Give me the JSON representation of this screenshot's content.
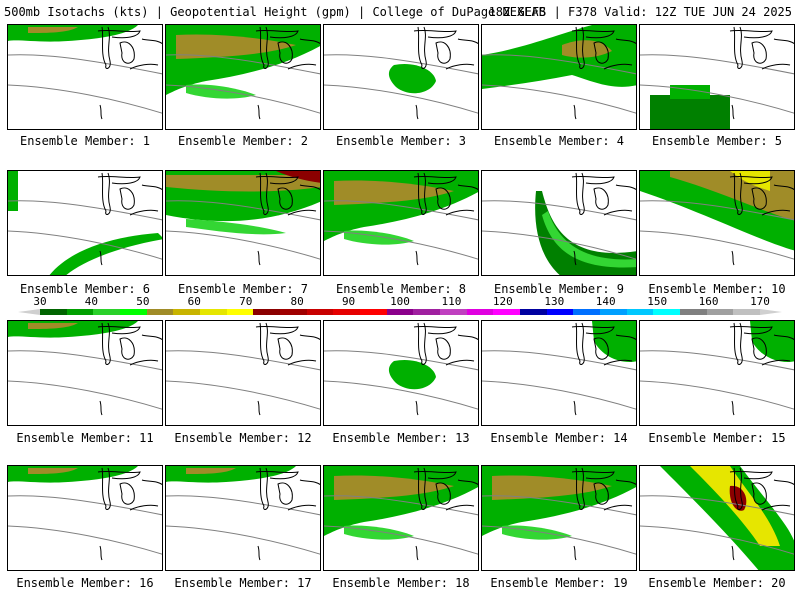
{
  "header": {
    "left": "500mb Isotachs (kts) | Geopotential Height (gpm) | College of DuPage NEXLAB",
    "right": "18Z GEFS | F378 Valid: 12Z TUE JUN 24 2025"
  },
  "panels": [
    {
      "label": "Ensemble Member: 1",
      "wind": "weak-north"
    },
    {
      "label": "Ensemble Member: 2",
      "wind": "broad-band"
    },
    {
      "label": "Ensemble Member: 3",
      "wind": "small-patch"
    },
    {
      "label": "Ensemble Member: 4",
      "wind": "northeast-band"
    },
    {
      "label": "Ensemble Member: 5",
      "wind": "south-block"
    },
    {
      "label": "Ensemble Member: 6",
      "wind": "arc-south"
    },
    {
      "label": "Ensemble Member: 7",
      "wind": "strong-north"
    },
    {
      "label": "Ensemble Member: 8",
      "wind": "broad-band"
    },
    {
      "label": "Ensemble Member: 9",
      "wind": "arc-wide"
    },
    {
      "label": "Ensemble Member: 10",
      "wind": "diagonal-band"
    },
    {
      "label": "Ensemble Member: 11",
      "wind": "weak-north"
    },
    {
      "label": "Ensemble Member: 12",
      "wind": "none"
    },
    {
      "label": "Ensemble Member: 13",
      "wind": "small-patch"
    },
    {
      "label": "Ensemble Member: 14",
      "wind": "east-patch"
    },
    {
      "label": "Ensemble Member: 15",
      "wind": "east-patch"
    },
    {
      "label": "Ensemble Member: 16",
      "wind": "weak-north"
    },
    {
      "label": "Ensemble Member: 17",
      "wind": "weak-north"
    },
    {
      "label": "Ensemble Member: 18",
      "wind": "broad-band"
    },
    {
      "label": "Ensemble Member: 19",
      "wind": "broad-band"
    },
    {
      "label": "Ensemble Member: 20",
      "wind": "jet-core"
    }
  ],
  "colorbar": {
    "ticks": [
      "30",
      "40",
      "50",
      "60",
      "70",
      "80",
      "90",
      "100",
      "110",
      "120",
      "130",
      "140",
      "150",
      "160",
      "170"
    ],
    "colors": [
      "#006400",
      "#00a000",
      "#2ad12a",
      "#00ff00",
      "#a08c28",
      "#c8b400",
      "#e6e600",
      "#ffff00",
      "#8b0000",
      "#a00000",
      "#c80000",
      "#e60000",
      "#ff0000",
      "#8b008b",
      "#a020a0",
      "#c040c0",
      "#e000e0",
      "#ff00ff",
      "#0000a0",
      "#0000ff",
      "#0070ff",
      "#00a0ff",
      "#00c8ff",
      "#00ffff",
      "#808080",
      "#a0a0a0",
      "#c0c0c0"
    ]
  }
}
